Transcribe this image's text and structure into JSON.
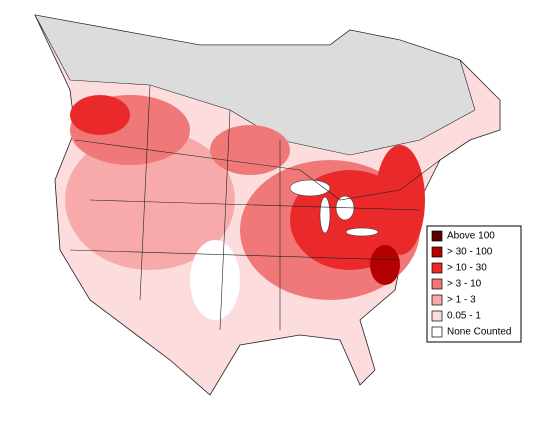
{
  "legend": {
    "items": [
      {
        "label": "Above 100",
        "color": "#5a0000"
      },
      {
        "label": "> 30 - 100",
        "color": "#b40000"
      },
      {
        "label": "> 10 - 30",
        "color": "#ea2a2a"
      },
      {
        "label": "> 3 - 10",
        "color": "#f07878"
      },
      {
        "label": "> 1 - 3",
        "color": "#f8aaaa"
      },
      {
        "label": "0.05 - 1",
        "color": "#fcdcdc"
      },
      {
        "label": "None Counted",
        "color": "#ffffff"
      }
    ]
  }
}
